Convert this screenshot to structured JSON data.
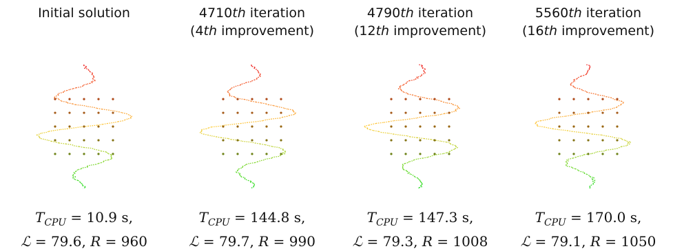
{
  "panels": [
    {
      "title_line1": "Initial solution",
      "title_line2": "",
      "t_cpu": "10.9 s,",
      "L_value": "79.6",
      "R_value": "960",
      "colors": [
        "#22dd22",
        "#ffcc33",
        "#ee2222"
      ]
    },
    {
      "title_num": "4710",
      "title_suffix": "th",
      "title_word": " iteration",
      "impr_num": "4",
      "impr_suffix": "th",
      "impr_word": " improvement",
      "t_cpu": "144.8 s,",
      "L_value": "79.7",
      "R_value": "990",
      "colors": [
        "#22dd22",
        "#ffcc33",
        "#ee2222"
      ]
    },
    {
      "title_num": "4790",
      "title_suffix": "th",
      "title_word": " iteration",
      "impr_num": "12",
      "impr_suffix": "th",
      "impr_word": " improvement",
      "t_cpu": "147.3 s,",
      "L_value": "79.3",
      "R_value": "1008",
      "colors": [
        "#22dd22",
        "#ffcc33",
        "#ee2222"
      ]
    },
    {
      "title_num": "5560",
      "title_suffix": "th",
      "title_word": " iteration",
      "impr_num": "16",
      "impr_suffix": "th",
      "impr_word": " improvement",
      "t_cpu": "170.0 s,",
      "L_value": "79.1",
      "R_value": "1050",
      "colors": [
        "#22dd22",
        "#ffcc33",
        "#ee2222"
      ]
    }
  ],
  "labels": {
    "t_symbol": "T",
    "t_sub": "CPU",
    "l_symbol": "ℒ",
    "r_symbol": "R",
    "equals": "=",
    "comma": ","
  }
}
